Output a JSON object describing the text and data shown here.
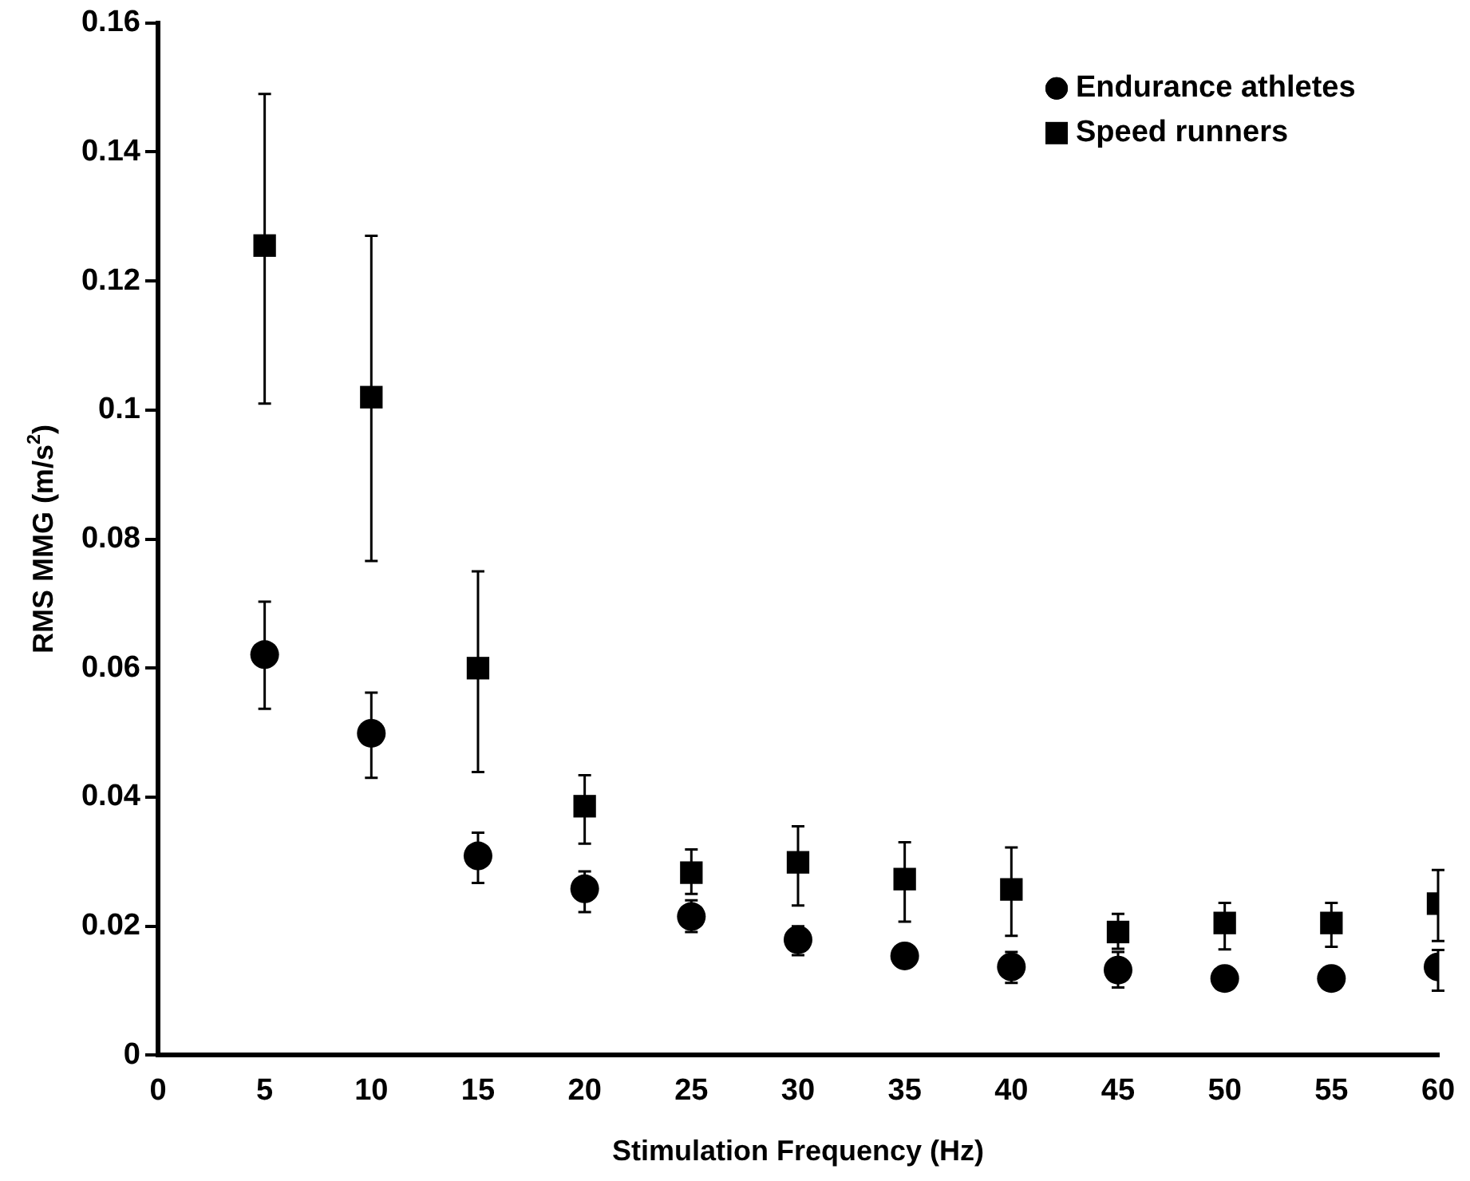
{
  "chart_data": {
    "type": "scatter",
    "xlabel": "Stimulation Frequency (Hz)",
    "ylabel": "RMS MMG (m/s$^{2}$)",
    "x": [
      5,
      10,
      15,
      20,
      25,
      30,
      35,
      40,
      45,
      50,
      55,
      60
    ],
    "series": [
      {
        "name": "Endurance athletes",
        "color": "#000000",
        "marker": "circle",
        "values": [
          0.0621,
          0.0499,
          0.0309,
          0.0258,
          0.0215,
          0.0179,
          0.0154,
          0.0137,
          0.0132,
          0.0119,
          0.0119,
          0.0137
        ],
        "errors": [
          [
            0.0537,
            0.0703
          ],
          [
            0.043,
            0.0562
          ],
          [
            0.0267,
            0.0345
          ],
          [
            0.0222,
            0.0285
          ],
          [
            0.0191,
            0.024
          ],
          [
            0.0155,
            0.02
          ],
          null,
          [
            0.0112,
            0.016
          ],
          [
            0.0105,
            0.016
          ],
          null,
          null,
          [
            0.01,
            0.0163
          ]
        ]
      },
      {
        "name": "Speed runners",
        "color": "#000000",
        "marker": "square",
        "values": [
          0.1255,
          0.102,
          0.06,
          0.0386,
          0.0283,
          0.0299,
          0.0273,
          0.0257,
          0.0191,
          0.0205,
          0.0205,
          0.0235
        ],
        "errors": [
          [
            0.101,
            0.149
          ],
          [
            0.0766,
            0.127
          ],
          [
            0.0439,
            0.075
          ],
          [
            0.0328,
            0.0434
          ],
          [
            0.025,
            0.0319
          ],
          [
            0.0232,
            0.0355
          ],
          [
            0.0207,
            0.033
          ],
          [
            0.0185,
            0.0322
          ],
          [
            0.0165,
            0.0219
          ],
          [
            0.0164,
            0.0236
          ],
          [
            0.0168,
            0.0236
          ],
          [
            0.0177,
            0.0287
          ]
        ]
      }
    ],
    "xlim": [
      0,
      60
    ],
    "xticks": [
      0,
      5,
      10,
      15,
      20,
      25,
      30,
      35,
      40,
      45,
      50,
      55,
      60
    ],
    "ylim": [
      0,
      0.16
    ],
    "yticks": [
      0,
      0.02,
      0.04,
      0.06,
      0.08,
      0.1,
      0.12,
      0.14,
      0.16
    ],
    "grid": false,
    "legend": "top right"
  }
}
